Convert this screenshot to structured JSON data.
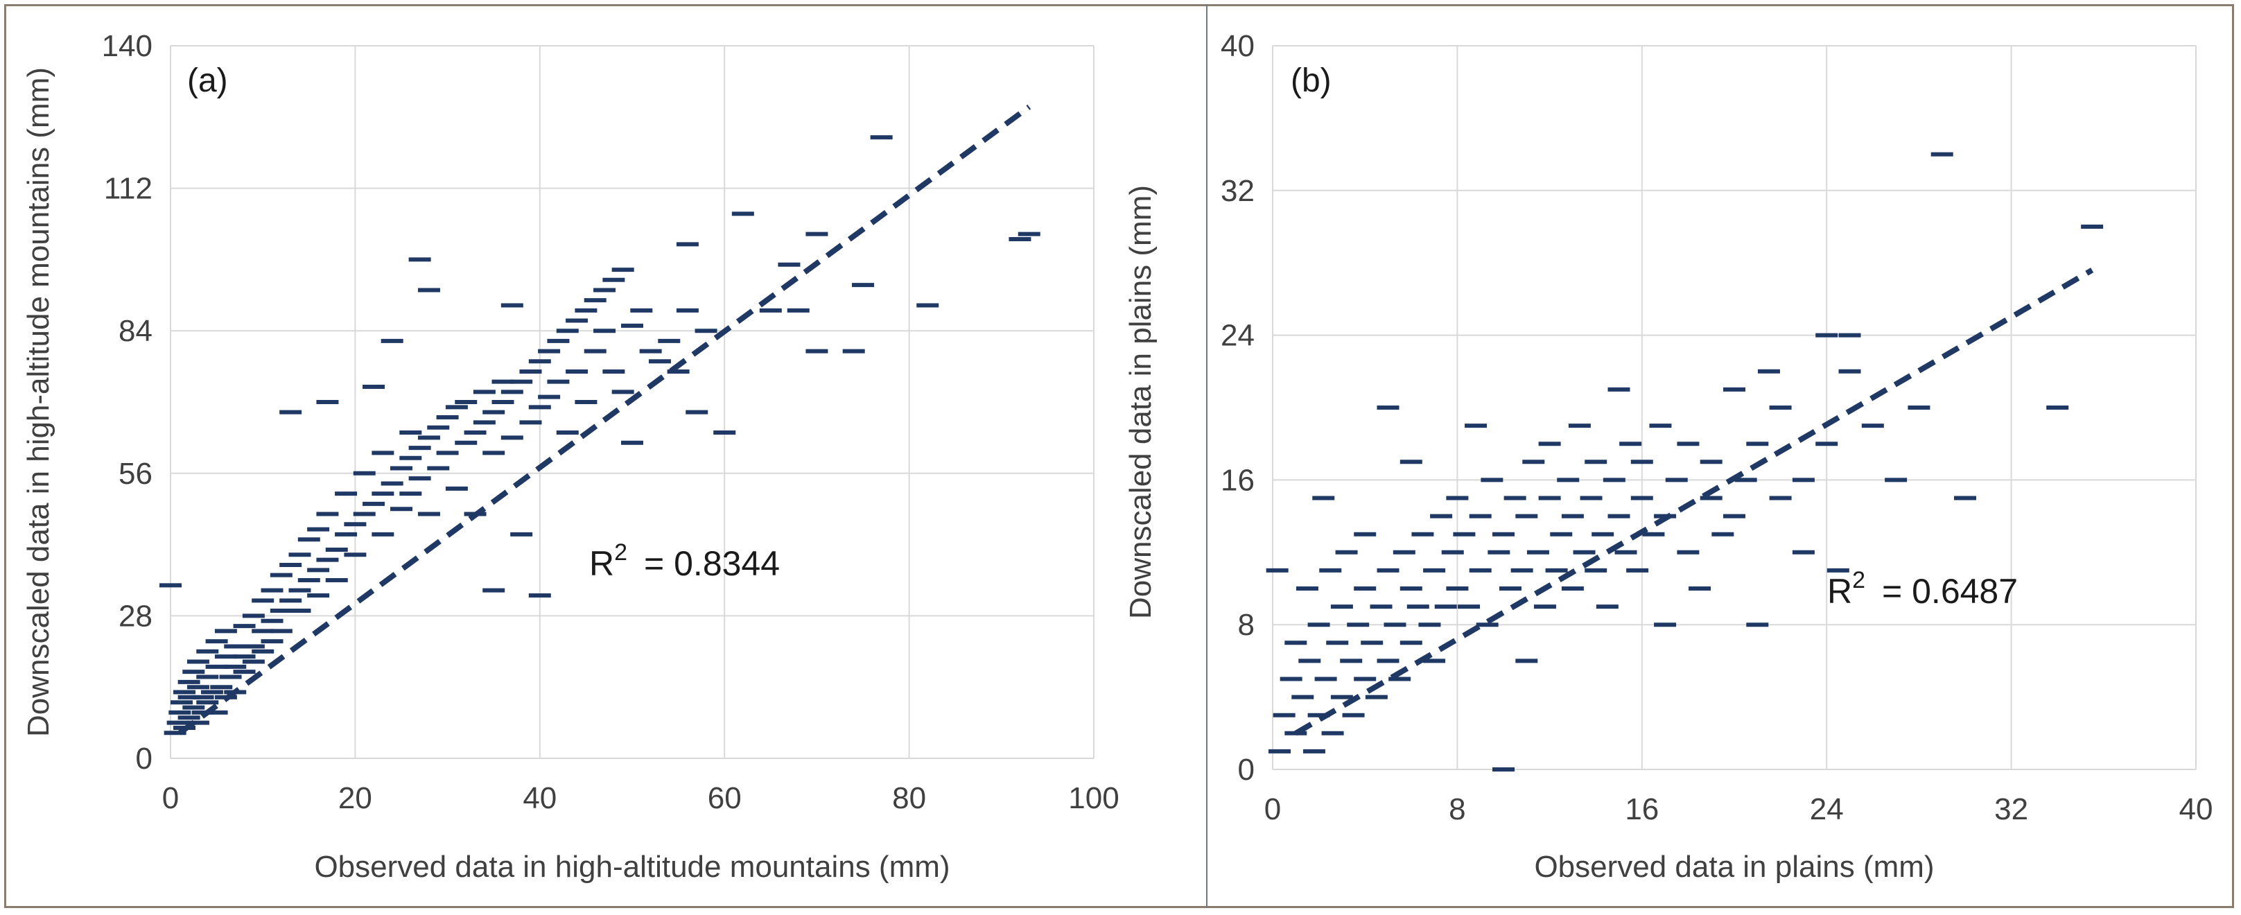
{
  "chart_data": [
    {
      "type": "scatter",
      "panel_label": "(a)",
      "xlabel": "Observed data in high-altitude mountains (mm)",
      "ylabel": "Downscaled data in high-altitude mountains (mm)",
      "xlim": [
        0,
        100
      ],
      "ylim": [
        0,
        140
      ],
      "xticks": [
        "0",
        "20",
        "40",
        "60",
        "80",
        "100"
      ],
      "yticks": [
        "0",
        "28",
        "56",
        "84",
        "112",
        "140"
      ],
      "grid": true,
      "r2_text": "R",
      "r2_sup": "2",
      "r2_value": "= 0.8344",
      "marker_color": "#1f3864",
      "fit_line": {
        "x": [
          1,
          93
        ],
        "y": [
          5,
          128
        ]
      },
      "points": [
        [
          0,
          34
        ],
        [
          0.5,
          5
        ],
        [
          0.8,
          7
        ],
        [
          1,
          9
        ],
        [
          1.2,
          11
        ],
        [
          1.5,
          13
        ],
        [
          1.5,
          6
        ],
        [
          2,
          8
        ],
        [
          2,
          12
        ],
        [
          2,
          15
        ],
        [
          2.5,
          10
        ],
        [
          2.5,
          17
        ],
        [
          3,
          7
        ],
        [
          3,
          14
        ],
        [
          3,
          19
        ],
        [
          3.5,
          9
        ],
        [
          3.5,
          12
        ],
        [
          4,
          16
        ],
        [
          4,
          11
        ],
        [
          4,
          21
        ],
        [
          4.5,
          13
        ],
        [
          5,
          9
        ],
        [
          5,
          18
        ],
        [
          5,
          23
        ],
        [
          5.5,
          14
        ],
        [
          6,
          12
        ],
        [
          6,
          20
        ],
        [
          6,
          25
        ],
        [
          6.5,
          16
        ],
        [
          7,
          18
        ],
        [
          7,
          22
        ],
        [
          7,
          13
        ],
        [
          8,
          20
        ],
        [
          8,
          26
        ],
        [
          8,
          17
        ],
        [
          9,
          22
        ],
        [
          9,
          28
        ],
        [
          9,
          19
        ],
        [
          10,
          25
        ],
        [
          10,
          31
        ],
        [
          10,
          21
        ],
        [
          11,
          27
        ],
        [
          11,
          33
        ],
        [
          11,
          23
        ],
        [
          12,
          29
        ],
        [
          12,
          36
        ],
        [
          12,
          25
        ],
        [
          13,
          31
        ],
        [
          13,
          38
        ],
        [
          13,
          68
        ],
        [
          14,
          33
        ],
        [
          14,
          40
        ],
        [
          14,
          29
        ],
        [
          15,
          35
        ],
        [
          15,
          43
        ],
        [
          16,
          37
        ],
        [
          16,
          45
        ],
        [
          16,
          32
        ],
        [
          17,
          39
        ],
        [
          17,
          48
        ],
        [
          17,
          70
        ],
        [
          18,
          41
        ],
        [
          18,
          35
        ],
        [
          19,
          44
        ],
        [
          19,
          52
        ],
        [
          20,
          46
        ],
        [
          20,
          40
        ],
        [
          21,
          48
        ],
        [
          21,
          56
        ],
        [
          22,
          50
        ],
        [
          22,
          73
        ],
        [
          23,
          52
        ],
        [
          23,
          60
        ],
        [
          23,
          44
        ],
        [
          24,
          54
        ],
        [
          24,
          82
        ],
        [
          25,
          57
        ],
        [
          25,
          49
        ],
        [
          26,
          59
        ],
        [
          26,
          64
        ],
        [
          26,
          52
        ],
        [
          27,
          61
        ],
        [
          27,
          55
        ],
        [
          27,
          98
        ],
        [
          28,
          63
        ],
        [
          28,
          48
        ],
        [
          28,
          92
        ],
        [
          29,
          65
        ],
        [
          29,
          57
        ],
        [
          30,
          67
        ],
        [
          30,
          60
        ],
        [
          31,
          69
        ],
        [
          31,
          53
        ],
        [
          32,
          62
        ],
        [
          32,
          70
        ],
        [
          33,
          64
        ],
        [
          33,
          48
        ],
        [
          34,
          66
        ],
        [
          34,
          72
        ],
        [
          35,
          68
        ],
        [
          35,
          60
        ],
        [
          35,
          33
        ],
        [
          36,
          70
        ],
        [
          36,
          74
        ],
        [
          37,
          72
        ],
        [
          37,
          63
        ],
        [
          37,
          89
        ],
        [
          38,
          74
        ],
        [
          38,
          44
        ],
        [
          39,
          76
        ],
        [
          39,
          66
        ],
        [
          40,
          78
        ],
        [
          40,
          69
        ],
        [
          40,
          32
        ],
        [
          41,
          80
        ],
        [
          41,
          71
        ],
        [
          42,
          82
        ],
        [
          42,
          74
        ],
        [
          43,
          84
        ],
        [
          43,
          64
        ],
        [
          44,
          86
        ],
        [
          44,
          76
        ],
        [
          45,
          88
        ],
        [
          45,
          70
        ],
        [
          46,
          90
        ],
        [
          46,
          80
        ],
        [
          47,
          92
        ],
        [
          47,
          84
        ],
        [
          48,
          94
        ],
        [
          48,
          76
        ],
        [
          49,
          96
        ],
        [
          49,
          72
        ],
        [
          50,
          85
        ],
        [
          50,
          62
        ],
        [
          51,
          88
        ],
        [
          52,
          80
        ],
        [
          53,
          78
        ],
        [
          54,
          82
        ],
        [
          55,
          76
        ],
        [
          56,
          101
        ],
        [
          56,
          88
        ],
        [
          57,
          68
        ],
        [
          58,
          84
        ],
        [
          60,
          64
        ],
        [
          62,
          107
        ],
        [
          65,
          88
        ],
        [
          67,
          97
        ],
        [
          68,
          88
        ],
        [
          70,
          103
        ],
        [
          70,
          80
        ],
        [
          74,
          80
        ],
        [
          75,
          93
        ],
        [
          77,
          122
        ],
        [
          82,
          89
        ],
        [
          92,
          102
        ],
        [
          93,
          103
        ]
      ]
    },
    {
      "type": "scatter",
      "panel_label": "(b)",
      "xlabel": "Observed data in plains (mm)",
      "ylabel": "Downscaled data in plains (mm)",
      "xlim": [
        0,
        40
      ],
      "ylim": [
        0,
        40
      ],
      "xticks": [
        "0",
        "8",
        "16",
        "24",
        "32",
        "40"
      ],
      "yticks": [
        "0",
        "8",
        "16",
        "24",
        "32",
        "40"
      ],
      "grid": true,
      "r2_text": "R",
      "r2_sup": "2",
      "r2_value": "= 0.6487",
      "marker_color": "#1f3864",
      "fit_line": {
        "x": [
          1,
          35.5
        ],
        "y": [
          2,
          27.6
        ]
      },
      "points": [
        [
          0.2,
          11
        ],
        [
          0.3,
          1
        ],
        [
          0.5,
          3
        ],
        [
          0.8,
          5
        ],
        [
          1,
          2
        ],
        [
          1,
          7
        ],
        [
          1.3,
          4
        ],
        [
          1.5,
          10
        ],
        [
          1.6,
          6
        ],
        [
          1.8,
          1
        ],
        [
          2,
          3
        ],
        [
          2,
          8
        ],
        [
          2.2,
          15
        ],
        [
          2.3,
          5
        ],
        [
          2.5,
          11
        ],
        [
          2.6,
          2
        ],
        [
          2.8,
          7
        ],
        [
          3,
          4
        ],
        [
          3,
          9
        ],
        [
          3.2,
          12
        ],
        [
          3.4,
          6
        ],
        [
          3.5,
          3
        ],
        [
          3.7,
          8
        ],
        [
          4,
          5
        ],
        [
          4,
          10
        ],
        [
          4,
          13
        ],
        [
          4.3,
          7
        ],
        [
          4.5,
          4
        ],
        [
          4.7,
          9
        ],
        [
          5,
          6
        ],
        [
          5,
          11
        ],
        [
          5,
          20
        ],
        [
          5.3,
          8
        ],
        [
          5.5,
          5
        ],
        [
          5.7,
          12
        ],
        [
          6,
          7
        ],
        [
          6,
          10
        ],
        [
          6,
          17
        ],
        [
          6.3,
          9
        ],
        [
          6.5,
          13
        ],
        [
          6.8,
          8
        ],
        [
          7,
          11
        ],
        [
          7,
          6
        ],
        [
          7.3,
          14
        ],
        [
          7.5,
          9
        ],
        [
          7.8,
          12
        ],
        [
          8,
          10
        ],
        [
          8,
          15
        ],
        [
          8.3,
          13
        ],
        [
          8.5,
          9
        ],
        [
          8.8,
          19
        ],
        [
          9,
          11
        ],
        [
          9,
          14
        ],
        [
          9.3,
          8
        ],
        [
          9.5,
          16
        ],
        [
          9.8,
          12
        ],
        [
          10,
          13
        ],
        [
          10,
          0
        ],
        [
          10.3,
          10
        ],
        [
          10.5,
          15
        ],
        [
          10.8,
          11
        ],
        [
          11,
          14
        ],
        [
          11,
          6
        ],
        [
          11.3,
          17
        ],
        [
          11.5,
          12
        ],
        [
          11.8,
          9
        ],
        [
          12,
          15
        ],
        [
          12,
          18
        ],
        [
          12.3,
          11
        ],
        [
          12.5,
          13
        ],
        [
          12.8,
          16
        ],
        [
          13,
          10
        ],
        [
          13,
          14
        ],
        [
          13.3,
          19
        ],
        [
          13.5,
          12
        ],
        [
          13.8,
          15
        ],
        [
          14,
          11
        ],
        [
          14,
          17
        ],
        [
          14.3,
          13
        ],
        [
          14.5,
          9
        ],
        [
          14.8,
          16
        ],
        [
          15,
          14
        ],
        [
          15,
          21
        ],
        [
          15.3,
          12
        ],
        [
          15.5,
          18
        ],
        [
          15.8,
          11
        ],
        [
          16,
          15
        ],
        [
          16,
          17
        ],
        [
          16.5,
          13
        ],
        [
          16.8,
          19
        ],
        [
          17,
          8
        ],
        [
          17,
          14
        ],
        [
          17.5,
          16
        ],
        [
          18,
          12
        ],
        [
          18,
          18
        ],
        [
          18.5,
          10
        ],
        [
          19,
          15
        ],
        [
          19,
          17
        ],
        [
          19.5,
          13
        ],
        [
          20,
          14
        ],
        [
          20,
          21
        ],
        [
          20.5,
          16
        ],
        [
          21,
          8
        ],
        [
          21,
          18
        ],
        [
          21.5,
          22
        ],
        [
          22,
          15
        ],
        [
          22,
          20
        ],
        [
          23,
          16
        ],
        [
          23,
          12
        ],
        [
          24,
          24
        ],
        [
          24,
          18
        ],
        [
          24.5,
          11
        ],
        [
          25,
          24
        ],
        [
          25,
          22
        ],
        [
          26,
          19
        ],
        [
          27,
          16
        ],
        [
          28,
          20
        ],
        [
          29,
          34
        ],
        [
          30,
          15
        ],
        [
          34,
          20
        ],
        [
          35.5,
          30
        ]
      ]
    }
  ]
}
